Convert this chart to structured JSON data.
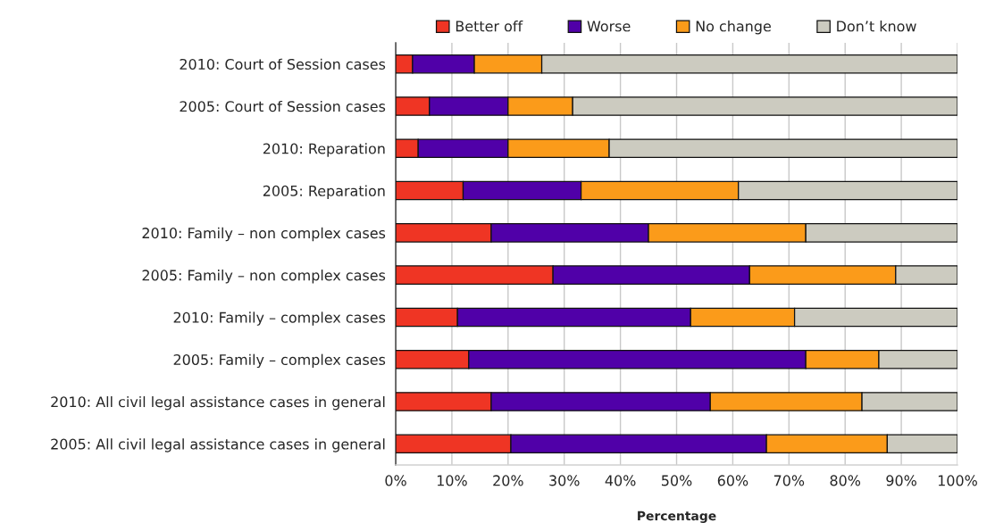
{
  "chart_data": {
    "type": "bar",
    "orientation": "horizontal",
    "stacked": true,
    "categories": [
      "2010: Court of Session cases",
      "2005: Court of Session cases",
      "2010: Reparation",
      "2005: Reparation",
      "2010: Family – non complex cases",
      "2005: Family – non complex cases",
      "2010: Family – complex cases",
      "2005: Family – complex cases",
      "2010: All civil legal assistance cases in general",
      "2005: All civil legal assistance cases in general"
    ],
    "series": [
      {
        "name": "Better off",
        "color": "#ef3524",
        "values": [
          3,
          6,
          4,
          12,
          17,
          28,
          11,
          13,
          17,
          20.5
        ]
      },
      {
        "name": "Worse",
        "color": "#5000a8",
        "values": [
          11,
          14,
          16,
          21,
          28,
          35,
          41.5,
          60,
          39,
          45.5
        ]
      },
      {
        "name": "No change",
        "color": "#fb9b1a",
        "values": [
          12,
          11.5,
          18,
          28,
          28,
          26,
          18.5,
          13,
          27,
          21.5
        ]
      },
      {
        "name": "Don’t know",
        "color": "#cccbc0",
        "values": [
          74,
          68.5,
          62,
          39,
          27,
          11,
          29,
          14,
          17,
          12.5
        ]
      }
    ],
    "xlim": [
      0,
      100
    ],
    "xticks": [
      {
        "value": 0,
        "label": "0%"
      },
      {
        "value": 10,
        "label": "10%"
      },
      {
        "value": 20,
        "label": "20%"
      },
      {
        "value": 30,
        "label": "30%"
      },
      {
        "value": 40,
        "label": "40%"
      },
      {
        "value": 50,
        "label": "50%"
      },
      {
        "value": 60,
        "label": "60%"
      },
      {
        "value": 70,
        "label": "70%"
      },
      {
        "value": 80,
        "label": "80%"
      },
      {
        "value": 90,
        "label": "90%"
      },
      {
        "value": 100,
        "label": "100%"
      }
    ],
    "xlabel": "Percentage",
    "grid": "x",
    "legend": "top"
  }
}
